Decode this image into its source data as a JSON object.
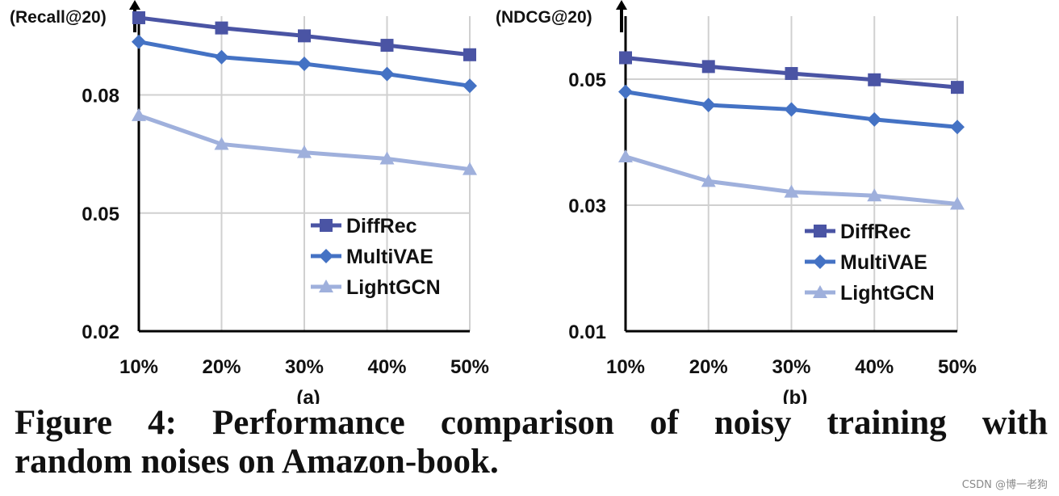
{
  "chart_data": [
    {
      "type": "line",
      "id": "a",
      "ylabel": "(Recall@20)",
      "sublabel": "(a)",
      "categories": [
        "10%",
        "20%",
        "30%",
        "40%",
        "50%"
      ],
      "ylim": [
        0.02,
        0.1
      ],
      "yticks": [
        0.02,
        0.05,
        0.08
      ],
      "ytick_labels": [
        "0.02",
        "0.05",
        "0.08"
      ],
      "grid": true,
      "legend_position": "bottom-right",
      "series": [
        {
          "name": "DiffRec",
          "marker": "square",
          "color": "#4a54a4",
          "values": [
            0.0996,
            0.097,
            0.095,
            0.0926,
            0.0902
          ]
        },
        {
          "name": "MultiVAE",
          "marker": "diamond",
          "color": "#4472c4",
          "values": [
            0.0935,
            0.0896,
            0.0879,
            0.0853,
            0.0823
          ]
        },
        {
          "name": "LightGCN",
          "marker": "triangle",
          "color": "#9fb0dc",
          "values": [
            0.0748,
            0.0675,
            0.0654,
            0.0638,
            0.0611
          ]
        }
      ]
    },
    {
      "type": "line",
      "id": "b",
      "ylabel": "(NDCG@20)",
      "sublabel": "(b)",
      "categories": [
        "10%",
        "20%",
        "30%",
        "40%",
        "50%"
      ],
      "ylim": [
        0.01,
        0.06
      ],
      "yticks": [
        0.01,
        0.03,
        0.05
      ],
      "ytick_labels": [
        "0.01",
        "0.03",
        "0.05"
      ],
      "grid": true,
      "legend_position": "bottom-right",
      "series": [
        {
          "name": "DiffRec",
          "marker": "square",
          "color": "#4a54a4",
          "values": [
            0.0534,
            0.052,
            0.0509,
            0.0499,
            0.0487
          ]
        },
        {
          "name": "MultiVAE",
          "marker": "diamond",
          "color": "#4472c4",
          "values": [
            0.048,
            0.0459,
            0.0452,
            0.0436,
            0.0424
          ]
        },
        {
          "name": "LightGCN",
          "marker": "triangle",
          "color": "#9fb0dc",
          "values": [
            0.0377,
            0.0338,
            0.0321,
            0.0315,
            0.0302
          ]
        }
      ]
    }
  ],
  "caption": {
    "line1": "Figure 4: Performance comparison of noisy training with",
    "line2": "random noises on Amazon-book."
  },
  "watermark": "CSDN @博一老狗"
}
